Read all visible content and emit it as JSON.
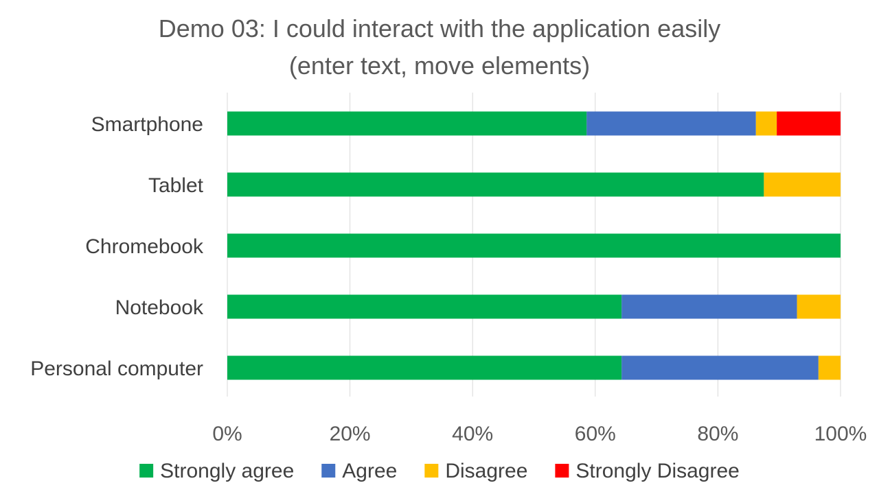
{
  "chart_data": {
    "type": "bar",
    "orientation": "horizontal",
    "stacked": "percent",
    "title_lines": [
      "Demo 03: I could interact with the application easily",
      "(enter text, move elements)"
    ],
    "categories": [
      "Smartphone",
      "Tablet",
      "Chromebook",
      "Notebook",
      "Personal computer"
    ],
    "series": [
      {
        "name": "Strongly agree",
        "color": "#00B050",
        "values": [
          58.6,
          87.5,
          100,
          64.3,
          64.3
        ]
      },
      {
        "name": "Agree",
        "color": "#4472C4",
        "values": [
          27.6,
          0,
          0,
          28.6,
          32.1
        ]
      },
      {
        "name": "Disagree",
        "color": "#FFC000",
        "values": [
          3.4,
          12.5,
          0,
          7.1,
          3.6
        ]
      },
      {
        "name": "Strongly Disagree",
        "color": "#FF0000",
        "values": [
          10.4,
          0,
          0,
          0,
          0
        ]
      }
    ],
    "xlim": [
      0,
      100
    ],
    "x_ticks": [
      0,
      20,
      40,
      60,
      80,
      100
    ],
    "x_tick_labels": [
      "0%",
      "20%",
      "40%",
      "60%",
      "80%",
      "100%"
    ],
    "grid": true,
    "legend_position": "bottom"
  }
}
